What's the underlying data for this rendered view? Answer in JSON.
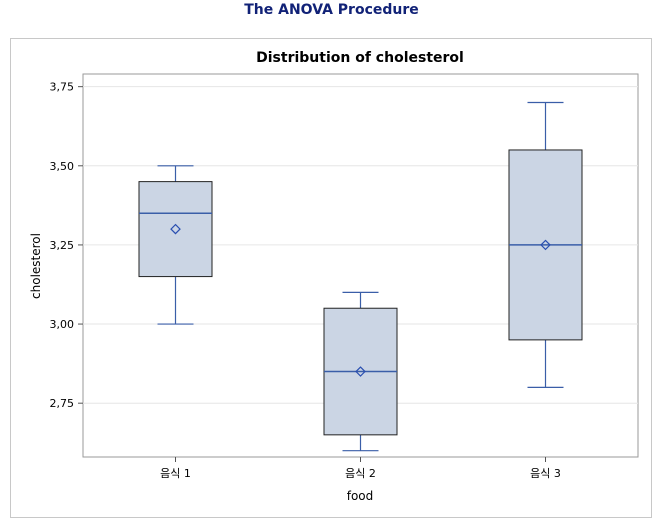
{
  "procedure_title": "The ANOVA Procedure",
  "chart_data": {
    "type": "box",
    "title": "Distribution of cholesterol",
    "xlabel": "food",
    "ylabel": "cholesterol",
    "categories": [
      "음식 1",
      "음식 2",
      "음식 3"
    ],
    "y_ticks": [
      "2,75",
      "3,00",
      "3,25",
      "3,50",
      "3,75"
    ],
    "ylim": [
      2.58,
      3.79
    ],
    "grid": "horizontal",
    "boxes": [
      {
        "category": "음식 1",
        "min": 3.0,
        "q1": 3.15,
        "median": 3.35,
        "q3": 3.45,
        "max": 3.5,
        "mean": 3.3
      },
      {
        "category": "음식 2",
        "min": 2.6,
        "q1": 2.65,
        "median": 2.85,
        "q3": 3.05,
        "max": 3.1,
        "mean": 2.85
      },
      {
        "category": "음식 3",
        "min": 2.8,
        "q1": 2.95,
        "median": 3.25,
        "q3": 3.55,
        "max": 3.7,
        "mean": 3.25
      }
    ],
    "colors": {
      "box_fill": "#cbd5e4",
      "box_stroke": "#222222",
      "whisker": "#3a5ea8",
      "median": "#3a5ea8",
      "mean_marker": "#2a4fb0",
      "grid": "#e6e6e6"
    }
  }
}
